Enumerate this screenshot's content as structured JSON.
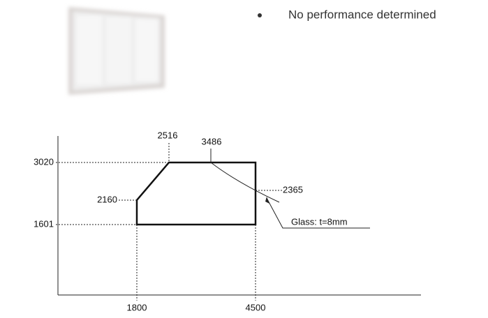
{
  "note": "No performance determined",
  "diagram": {
    "height_max": "3020",
    "height_min": "1601",
    "height_corner": "2160",
    "width_corner": "2516",
    "width_glass": "3486",
    "height_glass": "2365",
    "width_min": "1800",
    "width_max": "4500",
    "glass_label": "Glass: t=8mm"
  }
}
